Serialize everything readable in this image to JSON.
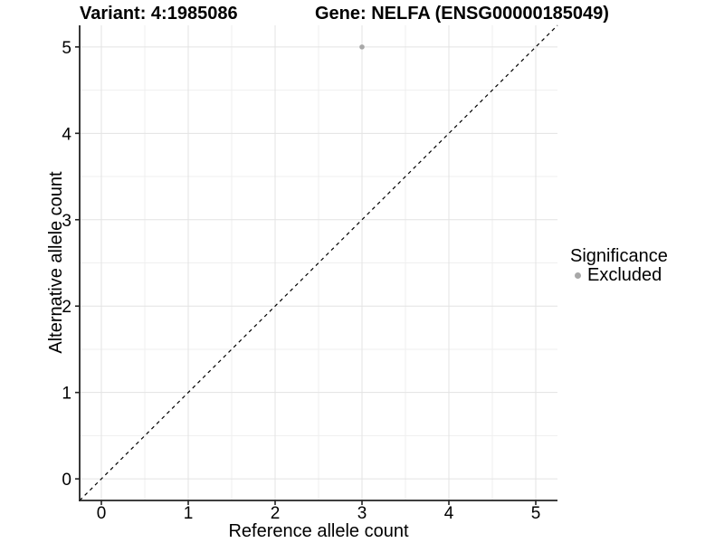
{
  "chart_data": {
    "type": "scatter",
    "titles": {
      "variant": "Variant: 4:1985086",
      "gene": "Gene: NELFA (ENSG00000185049)"
    },
    "xlabel": "Reference allele count",
    "ylabel": "Alternative allele count",
    "xlim": [
      -0.25,
      5.25
    ],
    "ylim": [
      -0.25,
      5.25
    ],
    "xticks": [
      0,
      1,
      2,
      3,
      4,
      5
    ],
    "yticks": [
      0,
      1,
      2,
      3,
      4,
      5
    ],
    "minor_grid_step": 0.5,
    "grid": "on",
    "series": [
      {
        "name": "Excluded",
        "color": "#a8a8a8",
        "points": [
          {
            "x": 3,
            "y": 5
          }
        ]
      }
    ],
    "reference_line": {
      "slope": 1,
      "intercept": 0,
      "style": "dashed",
      "color": "#000000"
    },
    "legend": {
      "position": "right",
      "title": "Significance",
      "items": [
        {
          "label": "Excluded",
          "color": "#a8a8a8"
        }
      ]
    },
    "style": {
      "major_grid_color": "#e3e3e3",
      "minor_grid_color": "#efefef",
      "axis_line_color": "#222222",
      "tick_label_color": "#000000",
      "point_radius_px": 2.8
    }
  }
}
